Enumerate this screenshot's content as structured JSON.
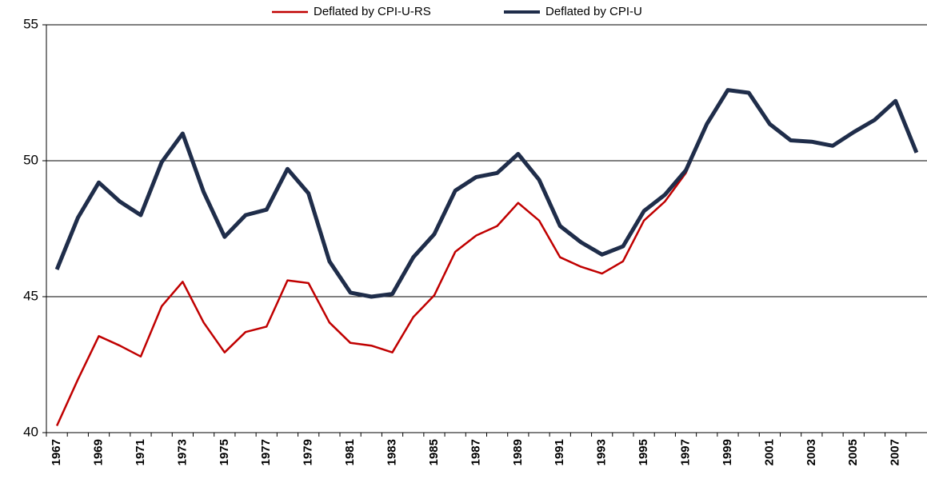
{
  "chart_data": {
    "type": "line",
    "categories": [
      "1967",
      null,
      "1969",
      null,
      "1971",
      null,
      "1973",
      null,
      "1975",
      null,
      "1977",
      null,
      "1979",
      null,
      "1981",
      null,
      "1983",
      null,
      "1985",
      null,
      "1987",
      null,
      "1989",
      null,
      "1991",
      null,
      "1993",
      null,
      "1995",
      null,
      "1997",
      null,
      "1999",
      null,
      "2001",
      null,
      "2003",
      null,
      "2005",
      null,
      "2007",
      null
    ],
    "series": [
      {
        "name": "Deflated by CPI-U-RS",
        "color": "#c00000",
        "values": [
          40.25,
          41.95,
          43.55,
          43.2,
          42.8,
          44.65,
          45.55,
          44.05,
          42.95,
          43.7,
          43.9,
          45.6,
          45.5,
          44.05,
          43.3,
          43.2,
          42.95,
          44.25,
          45.05,
          46.65,
          47.25,
          47.6,
          48.45,
          47.8,
          46.45,
          46.1,
          45.85,
          46.3,
          47.8,
          48.5,
          49.55,
          51.35,
          52.6,
          52.5,
          51.35,
          50.75,
          50.7,
          50.55,
          51.05,
          51.5,
          52.2,
          50.3
        ]
      },
      {
        "name": "Deflated by CPI-U",
        "color": "#1f2d4a",
        "values": [
          46.0,
          47.9,
          49.2,
          48.5,
          48.0,
          49.95,
          51.0,
          48.85,
          47.2,
          48.0,
          48.2,
          49.7,
          48.8,
          46.3,
          45.15,
          45.0,
          45.1,
          46.45,
          47.3,
          48.9,
          49.4,
          49.55,
          50.25,
          49.3,
          47.6,
          47.0,
          46.55,
          46.85,
          48.15,
          48.75,
          49.65,
          51.35,
          52.6,
          52.5,
          51.35,
          50.75,
          50.7,
          50.55,
          51.05,
          51.5,
          52.2,
          50.3
        ]
      }
    ],
    "ylim": [
      40,
      55
    ],
    "yticks": [
      40,
      45,
      50,
      55
    ],
    "grid": true,
    "legend": "top"
  }
}
